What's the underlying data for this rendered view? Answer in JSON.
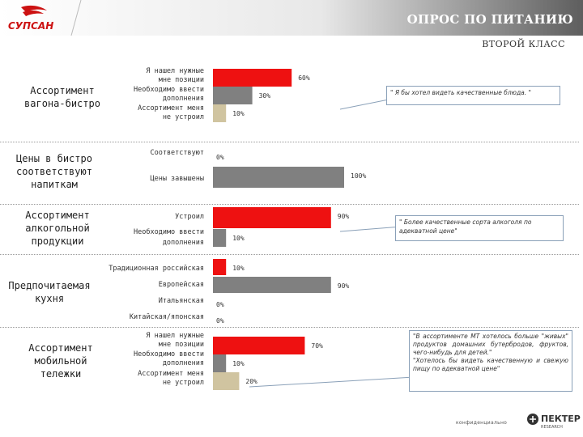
{
  "header": {
    "title": "ОПРОС ПО ПИТАНИЮ",
    "subtitle": "ВТОРОЙ КЛАСС",
    "logo_text": "СУПСАН"
  },
  "colors": {
    "red": "#ee1111",
    "gray": "#808080",
    "beige": "#d0c4a0",
    "header_dark": "#6b6b6b"
  },
  "sections": [
    "Ассортимент\nвагона-бистро",
    "Цены в бистро\nсоответствуют\nнапиткам",
    "Ассортимент\nалкогольной\nпродукции",
    "Предпочитаемая\nкухня",
    "Ассортимент\nмобильной\nтележки"
  ],
  "callouts": [
    "\" Я бы хотел видеть качественные блюда. \"",
    "\" Более качественные сорта алкоголя по адекватной цене\"",
    "\"В ассортименте МТ хотелось больше \"живых\" продуктов домашних бутербродов, фруктов, чего-нибудь для детей.\"\n\"Хотелось бы видеть качественную и свежую пищу по адекватной цене\""
  ],
  "footer": {
    "confidential": "конфиденциально",
    "brand": "ПЕКТЕР",
    "brand_sub": "RESEARCH"
  },
  "chart_data": [
    {
      "type": "bar",
      "section": "Ассортимент вагона-бистро",
      "categories": [
        "Я нашел нужные мне позиции",
        "Необходимо ввести дополнения",
        "Ассортимент меня не устроил"
      ],
      "values": [
        60,
        30,
        10
      ],
      "labels": [
        "60%",
        "30%",
        "10%"
      ],
      "colors": [
        "red",
        "gray",
        "beige"
      ]
    },
    {
      "type": "bar",
      "section": "Цены в бистро соответствуют напиткам",
      "categories": [
        "Соответствуют",
        "Цены завышены"
      ],
      "values": [
        0,
        100
      ],
      "labels": [
        "0%",
        "100%"
      ],
      "colors": [
        "red",
        "gray"
      ]
    },
    {
      "type": "bar",
      "section": "Ассортимент алкогольной продукции",
      "categories": [
        "Устроил",
        "Необходимо ввести дополнения"
      ],
      "values": [
        90,
        10
      ],
      "labels": [
        "90%",
        "10%"
      ],
      "colors": [
        "red",
        "gray"
      ]
    },
    {
      "type": "bar",
      "section": "Предпочитаемая кухня",
      "categories": [
        "Традиционная российская",
        "Европейская",
        "Итальянская",
        "Китайская/японская"
      ],
      "values": [
        10,
        90,
        0,
        0
      ],
      "labels": [
        "10%",
        "90%",
        "0%",
        "0%"
      ],
      "colors": [
        "red",
        "gray",
        "gray",
        "gray"
      ]
    },
    {
      "type": "bar",
      "section": "Ассортимент мобильной тележки",
      "categories": [
        "Я нашел нужные мне позиции",
        "Необходимо ввести дополнения",
        "Ассортимент меня не устроил"
      ],
      "values": [
        70,
        10,
        20
      ],
      "labels": [
        "70%",
        "10%",
        "20%"
      ],
      "colors": [
        "red",
        "gray",
        "beige"
      ]
    }
  ]
}
